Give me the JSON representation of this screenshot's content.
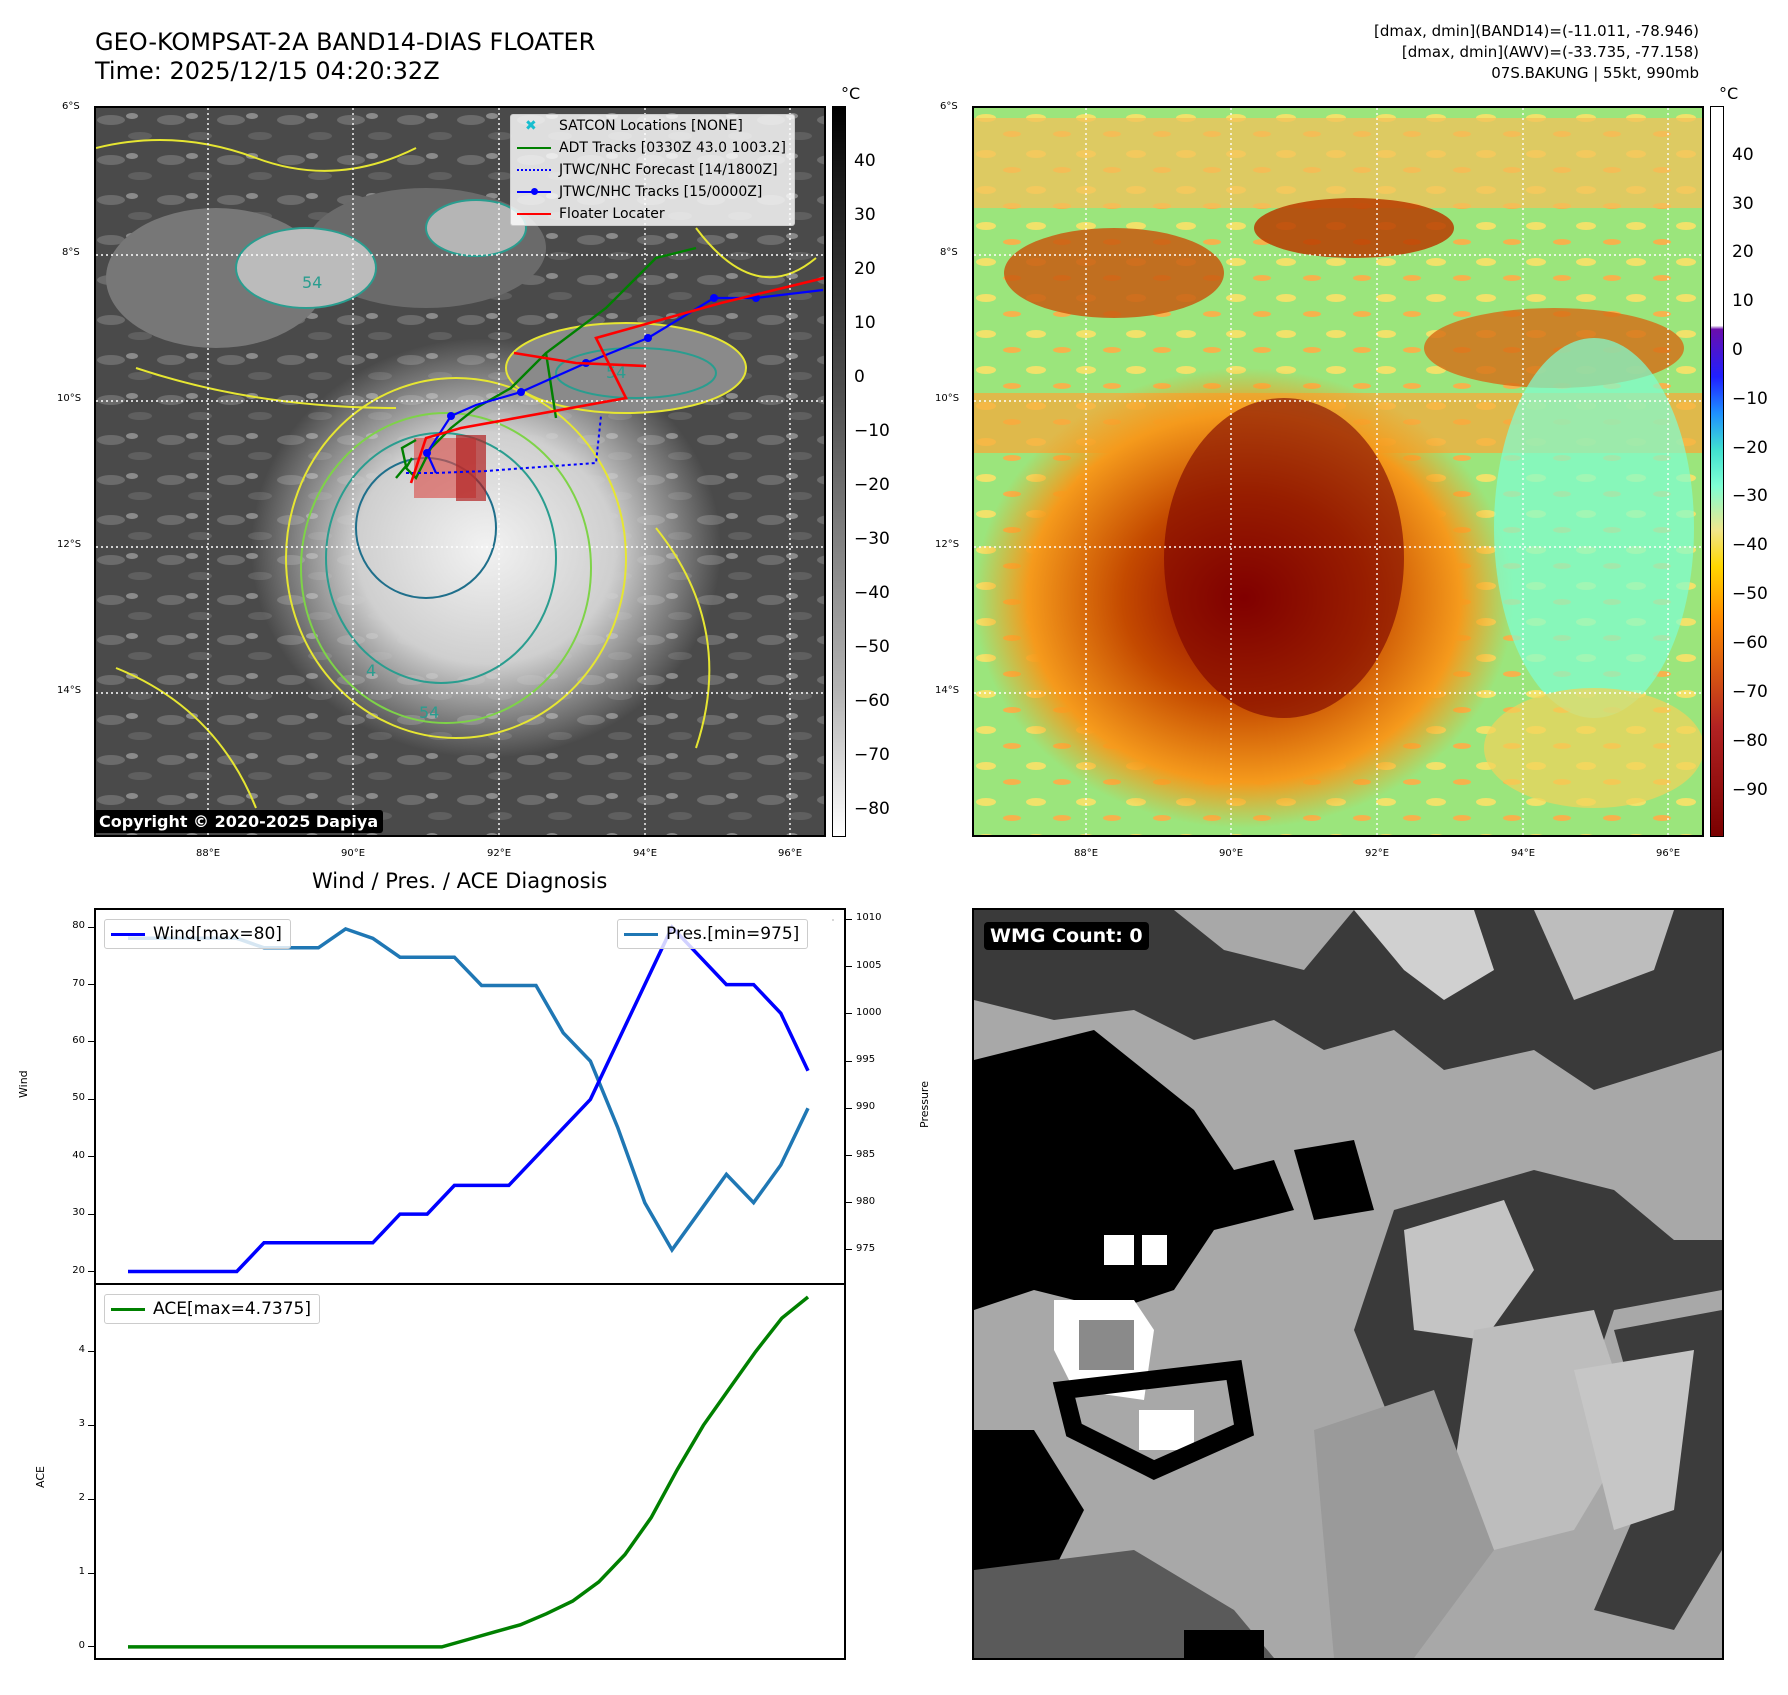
{
  "header": {
    "title_line1": "GEO-KOMPSAT-2A BAND14-DIAS FLOATER",
    "title_line2": "Time: 2025/12/15 04:20:32Z",
    "info_line1": "[dmax, dmin](BAND14)=(-11.011, -78.946)",
    "info_line2": "[dmax, dmin](AWV)=(-33.735, -77.158)",
    "info_line3": "07S.BAKUNG | 55kt, 990mb"
  },
  "map_ir": {
    "lat_ticks": [
      "6°S",
      "8°S",
      "10°S",
      "12°S",
      "14°S"
    ],
    "lon_ticks": [
      "88°E",
      "90°E",
      "92°E",
      "94°E",
      "96°E"
    ],
    "colorbar_unit": "°C",
    "colorbar_ticks": [
      "40",
      "30",
      "20",
      "10",
      "0",
      "−10",
      "−20",
      "−30",
      "−40",
      "−50",
      "−60",
      "−70",
      "−80"
    ],
    "legend": [
      {
        "label": "SATCON Locations [NONE]",
        "color": "#17becf",
        "style": "marker-x"
      },
      {
        "label": "ADT Tracks [0330Z 43.0 1003.2]",
        "color": "#008000",
        "style": "solid"
      },
      {
        "label": "JTWC/NHC Forecast [14/1800Z]",
        "color": "#0000ff",
        "style": "dotted"
      },
      {
        "label": "JTWC/NHC Tracks [15/0000Z]",
        "color": "#0000ff",
        "style": "solid-dot"
      },
      {
        "label": "Floater Locater",
        "color": "#ff0000",
        "style": "solid"
      }
    ],
    "copyright": "Copyright © 2020-2025 Dapiya",
    "contour_labels": [
      "54",
      "54",
      "54",
      "4"
    ]
  },
  "map_awv": {
    "lat_ticks": [
      "6°S",
      "8°S",
      "10°S",
      "12°S",
      "14°S"
    ],
    "lon_ticks": [
      "88°E",
      "90°E",
      "92°E",
      "94°E",
      "96°E"
    ],
    "colorbar_unit": "°C",
    "colorbar_ticks": [
      "40",
      "30",
      "20",
      "10",
      "0",
      "−10",
      "−20",
      "−30",
      "−40",
      "−50",
      "−60",
      "−70",
      "−80",
      "−90"
    ]
  },
  "wmg": {
    "label": "WMG Count: 0"
  },
  "chart_data": [
    {
      "type": "line",
      "title": "Wind / Pres. / ACE Diagnosis",
      "ylabel": "Wind",
      "ylabel_right": "Pressure",
      "ylim": [
        18,
        83
      ],
      "ylim_right": [
        971.5,
        1011
      ],
      "yticks": [
        20,
        30,
        40,
        50,
        60,
        70,
        80
      ],
      "yticks_right": [
        975,
        980,
        985,
        990,
        995,
        1000,
        1005,
        1010
      ],
      "legend_left": "Wind[max=80]",
      "legend_right": "Pres.[min=975]",
      "series": [
        {
          "name": "Wind[max=80]",
          "color": "#0000ff",
          "values": [
            20,
            20,
            20,
            20,
            20,
            25,
            25,
            25,
            25,
            25,
            30,
            30,
            35,
            35,
            35,
            40,
            45,
            50,
            60,
            70,
            80,
            75,
            70,
            70,
            65,
            55
          ]
        },
        {
          "name": "Pres.[min=975]",
          "color": "#1f77b4",
          "values": [
            1008,
            1008,
            1008,
            1008,
            1008,
            1007,
            1007,
            1007,
            1009,
            1008,
            1006,
            1006,
            1006,
            1003,
            1003,
            1003,
            998,
            995,
            988,
            980,
            975,
            979,
            983,
            980,
            984,
            990
          ]
        }
      ]
    },
    {
      "type": "line",
      "ylabel": "ACE",
      "ylim": [
        -0.15,
        4.9
      ],
      "yticks": [
        0,
        1,
        2,
        3,
        4
      ],
      "legend": "ACE[max=4.7375]",
      "series": [
        {
          "name": "ACE[max=4.7375]",
          "color": "#008000",
          "values": [
            0,
            0,
            0,
            0,
            0,
            0,
            0,
            0,
            0,
            0,
            0,
            0,
            0,
            0.1,
            0.2,
            0.3,
            0.45,
            0.62,
            0.88,
            1.25,
            1.75,
            2.4,
            3.0,
            3.5,
            4.0,
            4.45,
            4.7375
          ]
        }
      ]
    }
  ]
}
